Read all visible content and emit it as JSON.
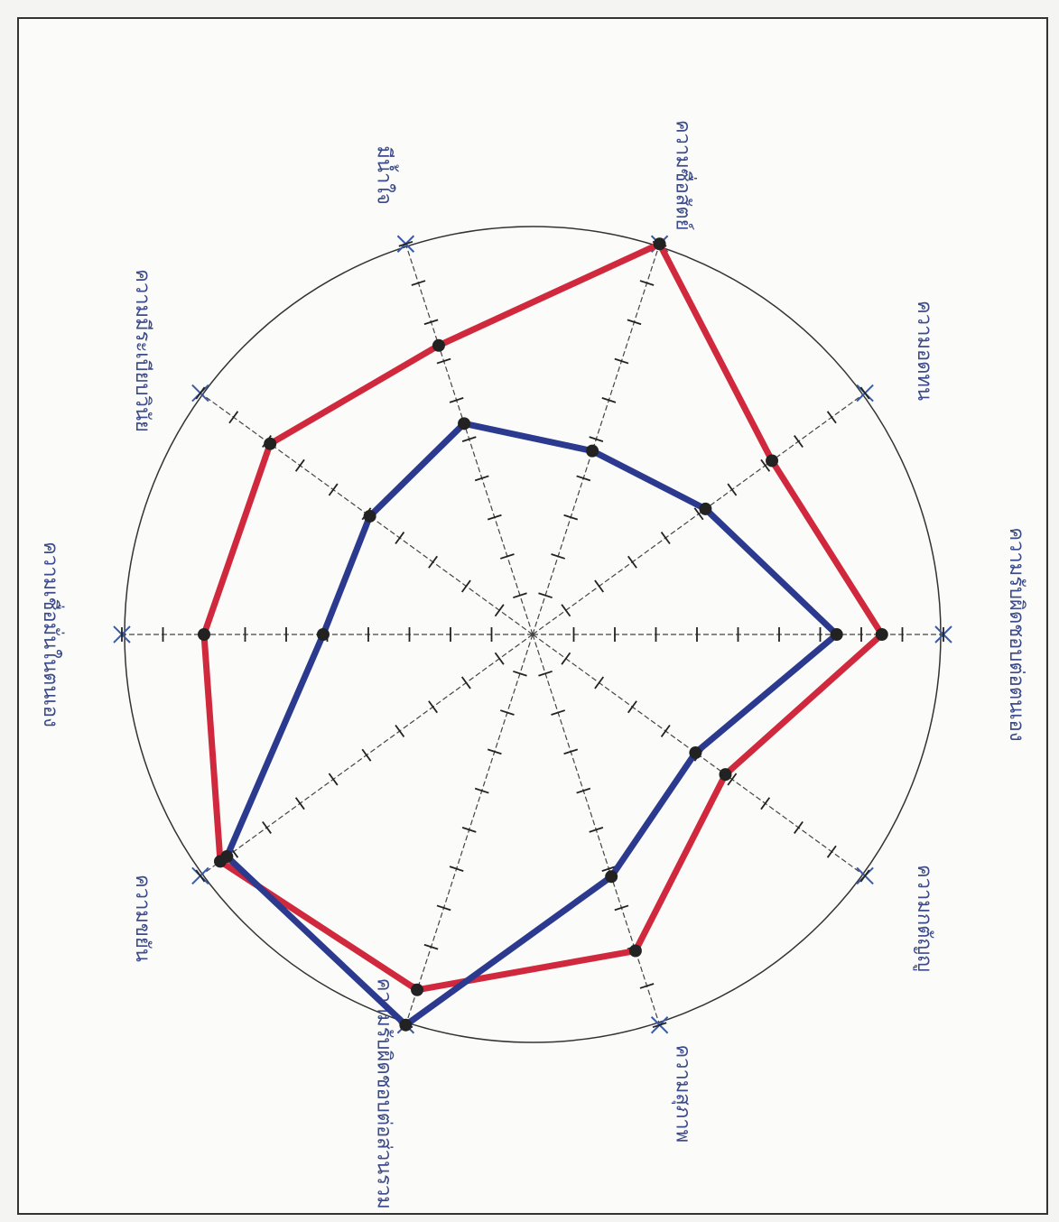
{
  "chart_data": {
    "type": "radar",
    "categories": [
      "ความรับผิดชอบต่อตนเอง",
      "ความอดทน",
      "ความซื่อสัตย์",
      "มีน้ำใจ",
      "ความมีระเบียบวินัย",
      "ความเชื่อมั่นในตนเอง",
      "ความขยัน",
      "ความรับผิดชอบต่อส่วนรวม",
      "ความสุภาพ",
      "ความกตัญญู"
    ],
    "series": [
      {
        "color": "#d0283c",
        "values": [
          8.5,
          7.2,
          10,
          7.4,
          7.9,
          8.0,
          9.4,
          9.1,
          8.1,
          5.8
        ]
      },
      {
        "color": "#2b3a8f",
        "values": [
          7.4,
          5.2,
          4.7,
          5.4,
          4.9,
          5.1,
          9.2,
          10,
          6.2,
          4.9
        ]
      }
    ],
    "rlim": [
      0,
      10
    ],
    "rticks": [
      1,
      2,
      3,
      4,
      5,
      6,
      7,
      8,
      9,
      10
    ]
  }
}
